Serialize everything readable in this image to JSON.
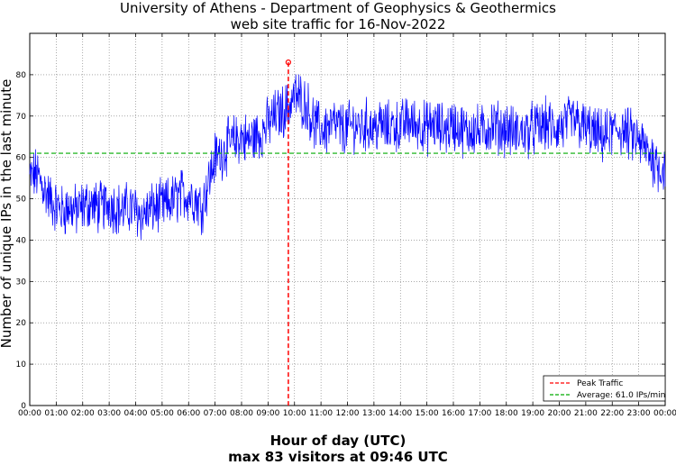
{
  "chart_data": {
    "type": "line",
    "title": "University of Athens - Department of Geophysics & Geothermics",
    "subtitle": "web site traffic for 16-Nov-2022",
    "xlabel": "Hour of day (UTC)",
    "xlabel_sub": "max 83 visitors at 09:46 UTC",
    "ylabel": "Number of unique IPs in the last minute",
    "xlim": [
      0,
      24
    ],
    "ylim": [
      0,
      90
    ],
    "grid": true,
    "legend_position": "bottom-right",
    "x_tick_labels": [
      "00:00",
      "01:00",
      "02:00",
      "03:00",
      "04:00",
      "05:00",
      "06:00",
      "07:00",
      "08:00",
      "09:00",
      "10:00",
      "11:00",
      "12:00",
      "13:00",
      "14:00",
      "15:00",
      "16:00",
      "17:00",
      "18:00",
      "19:00",
      "20:00",
      "21:00",
      "22:00",
      "23:00",
      "00:00"
    ],
    "y_ticks": [
      0,
      10,
      20,
      30,
      40,
      50,
      60,
      70,
      80,
      90
    ],
    "y_tick_labels": [
      "0",
      "10",
      "20",
      "30",
      "40",
      "50",
      "60",
      "70",
      "80",
      ""
    ],
    "series": [
      {
        "name": "",
        "color": "#0000ff",
        "x": [
          0,
          0.25,
          0.5,
          0.75,
          1,
          1.25,
          1.5,
          1.75,
          2,
          2.25,
          2.5,
          2.75,
          3,
          3.25,
          3.5,
          3.75,
          4,
          4.25,
          4.5,
          4.75,
          5,
          5.25,
          5.5,
          5.75,
          6,
          6.25,
          6.5,
          6.75,
          7,
          7.25,
          7.5,
          7.75,
          8,
          8.25,
          8.5,
          8.75,
          9,
          9.25,
          9.5,
          9.75,
          10,
          10.25,
          10.5,
          10.75,
          11,
          11.25,
          11.5,
          11.75,
          12,
          12.25,
          12.5,
          12.75,
          13,
          13.25,
          13.5,
          13.75,
          14,
          14.25,
          14.5,
          14.75,
          15,
          15.25,
          15.5,
          15.75,
          16,
          16.25,
          16.5,
          16.75,
          17,
          17.25,
          17.5,
          17.75,
          18,
          18.25,
          18.5,
          18.75,
          19,
          19.25,
          19.5,
          19.75,
          20,
          20.25,
          20.5,
          20.75,
          21,
          21.25,
          21.5,
          21.75,
          22,
          22.25,
          22.5,
          22.75,
          23,
          23.25,
          23.5,
          23.75,
          24
        ],
        "y": [
          55,
          56,
          53,
          50,
          48,
          47,
          48,
          47,
          48,
          49,
          48,
          48,
          49,
          48,
          47,
          48,
          47,
          46,
          47,
          48,
          48,
          49,
          50,
          51,
          51,
          50,
          48,
          54,
          60,
          61,
          63,
          64,
          65,
          64,
          65,
          66,
          68,
          70,
          71,
          72,
          75,
          74,
          72,
          68,
          67,
          67,
          68,
          67,
          67,
          68,
          67,
          68,
          67,
          68,
          67,
          68,
          67,
          69,
          68,
          68,
          67,
          68,
          67,
          67,
          68,
          67,
          66,
          67,
          66,
          67,
          68,
          67,
          67,
          66,
          66,
          66,
          67,
          67,
          68,
          67,
          67,
          68,
          69,
          68,
          67,
          66,
          65,
          65,
          66,
          67,
          66,
          65,
          64,
          62,
          60,
          58,
          57
        ]
      },
      {
        "name": "Peak Traffic",
        "color": "#ff0000",
        "style": "dashed",
        "x": 9.7667,
        "peak_value": 83
      },
      {
        "name": "Average: 61.0 IPs/min",
        "color": "#00aa00",
        "style": "dashed",
        "value": 61.0
      }
    ]
  }
}
